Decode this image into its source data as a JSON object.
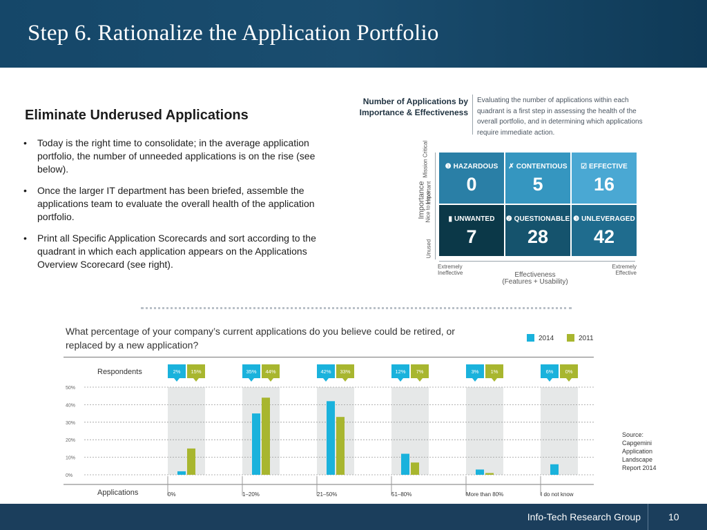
{
  "slide": {
    "title": "Step 6. Rationalize the Application Portfolio",
    "footer_org": "Info-Tech Research Group",
    "page_number": "10"
  },
  "left": {
    "heading": "Eliminate Underused Applications",
    "bullets": [
      "Today is the right time to consolidate; in the average application portfolio, the number of unneeded applications is on the rise (see below).",
      "Once the larger IT department has been briefed, assemble the applications team to evaluate the overall health of the application portfolio.",
      "Print all Specific Application Scorecards and sort according to the quadrant in which each application appears on the Applications Overview Scorecard (see right)."
    ]
  },
  "quadrant": {
    "title": "Number of Applications by Importance & Effectiveness",
    "description": "Evaluating the number of applications within each quadrant is a first step in assessing the health of the overall portfolio, and in determining which applications require immediate action.",
    "y_axis_label": "Importance",
    "y_levels": [
      "Mission Critical",
      "Nice to Have",
      "Important",
      "Unused"
    ],
    "x_axis_label": "Effectiveness",
    "x_axis_sub": "(Features + Usability)",
    "x_left": "Extremely Ineffective",
    "x_right": "Extremely Effective",
    "cells": [
      {
        "label": "HAZARDOUS",
        "count": "0",
        "color": "#2a7fa6",
        "icon": "info-icon"
      },
      {
        "label": "CONTENTIOUS",
        "count": "5",
        "color": "#3596c0",
        "icon": "tool-icon"
      },
      {
        "label": "EFFECTIVE",
        "count": "16",
        "color": "#4aa8d3",
        "icon": "check-icon"
      },
      {
        "label": "UNWANTED",
        "count": "7",
        "color": "#0b3848",
        "icon": "trash-icon"
      },
      {
        "label": "QUESTIONABLE",
        "count": "28",
        "color": "#15536d",
        "icon": "question-icon"
      },
      {
        "label": "UNLEVERAGED",
        "count": "42",
        "color": "#1f6c8e",
        "icon": "dollar-icon"
      }
    ]
  },
  "chart_data": {
    "type": "bar",
    "title": "What percentage of your company’s current applications do you believe could be retired, or replaced by a new application?",
    "categories": [
      "0%",
      "1–20%",
      "21–50%",
      "51–80%",
      "More than 80%",
      "I do not know"
    ],
    "series": [
      {
        "name": "2014",
        "values": [
          2,
          35,
          42,
          12,
          3,
          6
        ],
        "labels": [
          "2%",
          "35%",
          "42%",
          "12%",
          "3%",
          "6%"
        ],
        "color": "#1ab2dc"
      },
      {
        "name": "2011",
        "values": [
          15,
          44,
          33,
          7,
          1,
          0
        ],
        "labels": [
          "15%",
          "44%",
          "33%",
          "7%",
          "1%",
          "0%"
        ],
        "color": "#a8b62f"
      }
    ],
    "y_ticks": [
      "0%",
      "10%",
      "20%",
      "30%",
      "40%",
      "50%"
    ],
    "ylim": [
      0,
      50
    ],
    "respondents_label": "Respondents",
    "x_axis_label": "Applications",
    "grid": "dashed",
    "legend_position": "top-right"
  },
  "source_note": "Source: Capgemini Application Landscape Report 2014"
}
